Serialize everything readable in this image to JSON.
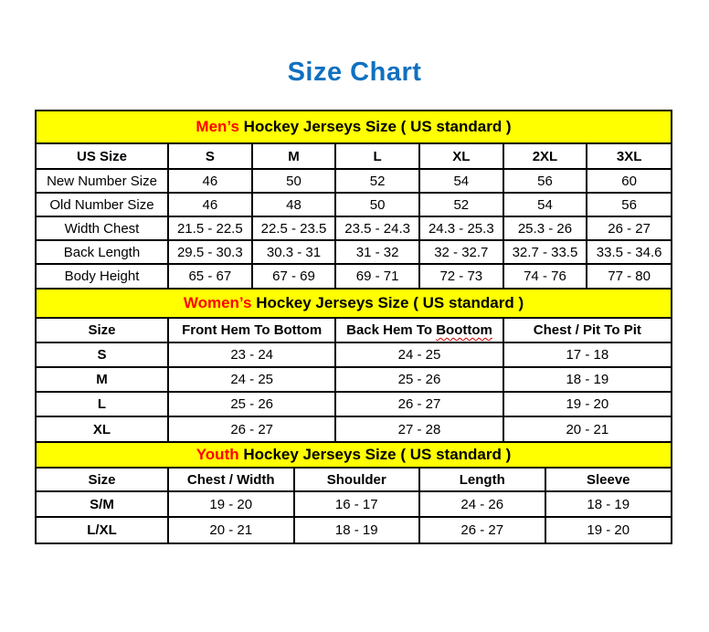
{
  "page": {
    "title": "Size Chart"
  },
  "colors": {
    "title_blue": "#1070C0",
    "band_yellow": "#FFFF00",
    "accent_red": "#FF0000",
    "border_black": "#000000",
    "squiggle_red": "#CC0000"
  },
  "chart_data": [
    {
      "type": "table",
      "title_highlight": "Men’s",
      "title_rest": " Hockey Jerseys Size ( US standard )",
      "columns": [
        "US Size",
        "S",
        "M",
        "L",
        "XL",
        "2XL",
        "3XL"
      ],
      "rows": [
        [
          "New Number Size",
          "46",
          "50",
          "52",
          "54",
          "56",
          "60"
        ],
        [
          "Old Number Size",
          "46",
          "48",
          "50",
          "52",
          "54",
          "56"
        ],
        [
          "Width Chest",
          "21.5 - 22.5",
          "22.5 - 23.5",
          "23.5 - 24.3",
          "24.3 - 25.3",
          "25.3 - 26",
          "26 - 27"
        ],
        [
          "Back Length",
          "29.5 - 30.3",
          "30.3 - 31",
          "31 - 32",
          "32 - 32.7",
          "32.7 - 33.5",
          "33.5 - 34.6"
        ],
        [
          "Body Height",
          "65 - 67",
          "67 - 69",
          "69 - 71",
          "72 - 73",
          "74 - 76",
          "77 - 80"
        ]
      ]
    },
    {
      "type": "table",
      "title_highlight": "Women’s",
      "title_rest": " Hockey Jerseys Size ( US standard )",
      "columns": [
        "Size",
        "Front Hem To Bottom",
        {
          "pre": "Back Hem To ",
          "wavy": "Boottom"
        },
        "Chest / Pit To Pit"
      ],
      "rows": [
        [
          "S",
          "23 - 24",
          "24 - 25",
          "17 - 18"
        ],
        [
          "M",
          "24 - 25",
          "25 - 26",
          "18 - 19"
        ],
        [
          "L",
          "25 - 26",
          "26 - 27",
          "19 - 20"
        ],
        [
          "XL",
          "26 - 27",
          "27 - 28",
          "20 - 21"
        ]
      ]
    },
    {
      "type": "table",
      "title_highlight": "Youth",
      "title_rest": " Hockey Jerseys Size ( US standard )",
      "columns": [
        "Size",
        "Chest / Width",
        "Shoulder",
        "Length",
        "Sleeve"
      ],
      "rows": [
        [
          "S/M",
          "19 - 20",
          "16 - 17",
          "24 - 26",
          "18 - 19"
        ],
        [
          "L/XL",
          "20 - 21",
          "18 - 19",
          "26 - 27",
          "19 - 20"
        ]
      ]
    }
  ]
}
